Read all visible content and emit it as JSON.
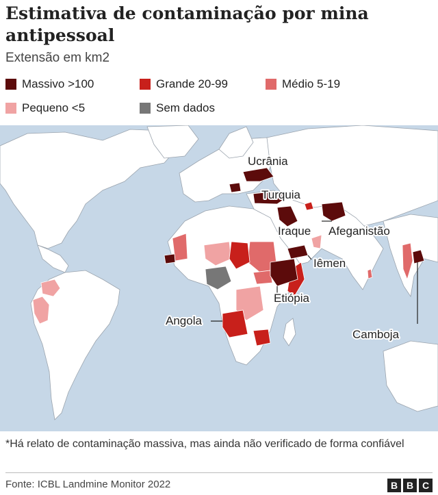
{
  "title": "Estimativa de contaminação por mina antipessoal",
  "subtitle": "Extensão em km2",
  "legend": [
    {
      "label": "Massivo >100",
      "color": "#5c0b0b"
    },
    {
      "label": "Grande 20-99",
      "color": "#c8201b"
    },
    {
      "label": "Médio 5-19",
      "color": "#e06a6a"
    },
    {
      "label": "Pequeno <5",
      "color": "#f0a3a3"
    },
    {
      "label": "Sem dados",
      "color": "#777777"
    }
  ],
  "map_labels": {
    "ukraine": "Ucrânia",
    "turkey": "Turquia",
    "iraq": "Iraque",
    "afghanistan": "Afeganistão",
    "yemen": "Iêmen",
    "ethiopia": "Etiópia",
    "angola": "Angola",
    "cambodia": "Camboja"
  },
  "colors": {
    "ocean": "#c6d7e7",
    "land": "#ffffff",
    "massive": "#5c0b0b",
    "large": "#c8201b",
    "medium": "#e06a6a",
    "small": "#f0a3a3",
    "no_data": "#777777"
  },
  "footnote": "*Há relato de contaminação massiva, mas ainda não verificado de forma confiável",
  "source": "Fonte: ICBL Landmine Monitor 2022",
  "brand": [
    "B",
    "B",
    "C"
  ]
}
